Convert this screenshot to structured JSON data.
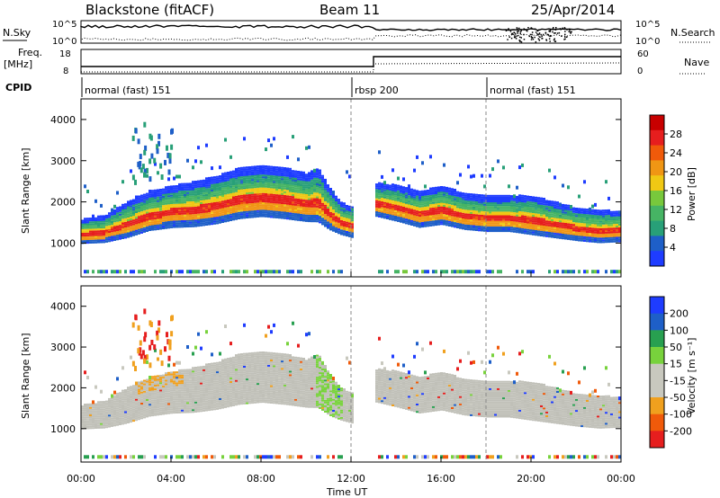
{
  "header": {
    "station": "Blackstone (fitACF)",
    "beam": "Beam 11",
    "date": "25/Apr/2014"
  },
  "top_panels": {
    "noise_left_label": "N.Sky",
    "noise_right_label": "N.Search",
    "noise_ticks_left": [
      "10^5",
      "10^0"
    ],
    "noise_ticks_right": [
      "10^5",
      "10^0"
    ],
    "freq_label_1": "Freq.",
    "freq_label_2": "[MHz]",
    "freq_ticks": [
      "18",
      "8"
    ],
    "nave_label": "Nave",
    "nave_ticks": [
      "60",
      "0"
    ],
    "cpid_label": "CPID",
    "cpid_segments": [
      {
        "label": "normal (fast) 151",
        "start_hour": 0,
        "end_hour": 12.0
      },
      {
        "label": "rbsp 200",
        "start_hour": 12.0,
        "end_hour": 18.0
      },
      {
        "label": "normal (fast) 151",
        "start_hour": 18.0,
        "end_hour": 24.0
      }
    ]
  },
  "colors": {
    "power_scale": [
      "#1e3cff",
      "#1e5fc8",
      "#28a078",
      "#46b464",
      "#78c83c",
      "#f0c814",
      "#f09614",
      "#f05a0a",
      "#e61e1e",
      "#c80000"
    ],
    "velocity_scale": [
      "#e61e1e",
      "#f05a0a",
      "#f0a01e",
      "#c8c8be",
      "#c8c8be",
      "#78d23c",
      "#28a050",
      "#1e5fc8",
      "#1e3cff"
    ],
    "scatter_gray": "#c0c0b8"
  },
  "power_colorbar": {
    "label": "Power [dB]",
    "ticks": [
      "28",
      "24",
      "20",
      "16",
      "12",
      "8",
      "4"
    ]
  },
  "velocity_colorbar": {
    "label": "Velocity [m s⁻¹]",
    "ticks": [
      "200",
      "100",
      "50",
      "15",
      "-15",
      "-50",
      "-100",
      "-200"
    ]
  },
  "axes": {
    "ylabel": "Slant Range [km]",
    "y_ticks": [
      "4000",
      "3000",
      "2000",
      "1000"
    ],
    "xlabel": "Time UT",
    "x_ticks": [
      "00:00",
      "04:00",
      "08:00",
      "12:00",
      "16:00",
      "20:00",
      "00:00"
    ]
  },
  "chart_data": [
    {
      "type": "heatmap",
      "title": "",
      "quantity": "Power",
      "xlabel": "Time UT",
      "ylabel": "Slant Range [km]",
      "x_range_hours": [
        0,
        24
      ],
      "ylim": [
        180,
        4500
      ],
      "color_range_db": [
        0,
        32
      ],
      "main_band": {
        "hours": [
          0,
          1,
          2,
          3,
          4,
          5,
          6,
          7,
          8,
          9,
          10,
          10.5,
          11,
          11.5,
          12,
          12.3,
          13,
          14,
          15,
          16,
          17,
          18,
          19,
          20,
          21,
          22,
          23,
          24
        ],
        "center_km": [
          1200,
          1250,
          1450,
          1650,
          1750,
          1800,
          1900,
          2050,
          2100,
          2050,
          1950,
          2000,
          1700,
          1500,
          1400,
          null,
          1950,
          1850,
          1700,
          1800,
          1650,
          1600,
          1600,
          1550,
          1450,
          1350,
          1300,
          1300
        ],
        "width_km": [
          400,
          450,
          600,
          650,
          700,
          750,
          800,
          850,
          850,
          850,
          800,
          900,
          700,
          550,
          500,
          null,
          550,
          600,
          600,
          650,
          600,
          600,
          600,
          650,
          600,
          550,
          550,
          500
        ]
      },
      "data_gap_hours": [
        12.3,
        13.0
      ]
    },
    {
      "type": "heatmap",
      "title": "",
      "quantity": "Velocity",
      "xlabel": "Time UT",
      "ylabel": "Slant Range [km]",
      "x_range_hours": [
        0,
        24
      ],
      "ylim": [
        180,
        4500
      ],
      "color_range_ms": [
        -250,
        250
      ],
      "ground_scatter_band": "same as main_band (near-zero velocity)",
      "data_gap_hours": [
        12.3,
        13.0
      ]
    }
  ]
}
